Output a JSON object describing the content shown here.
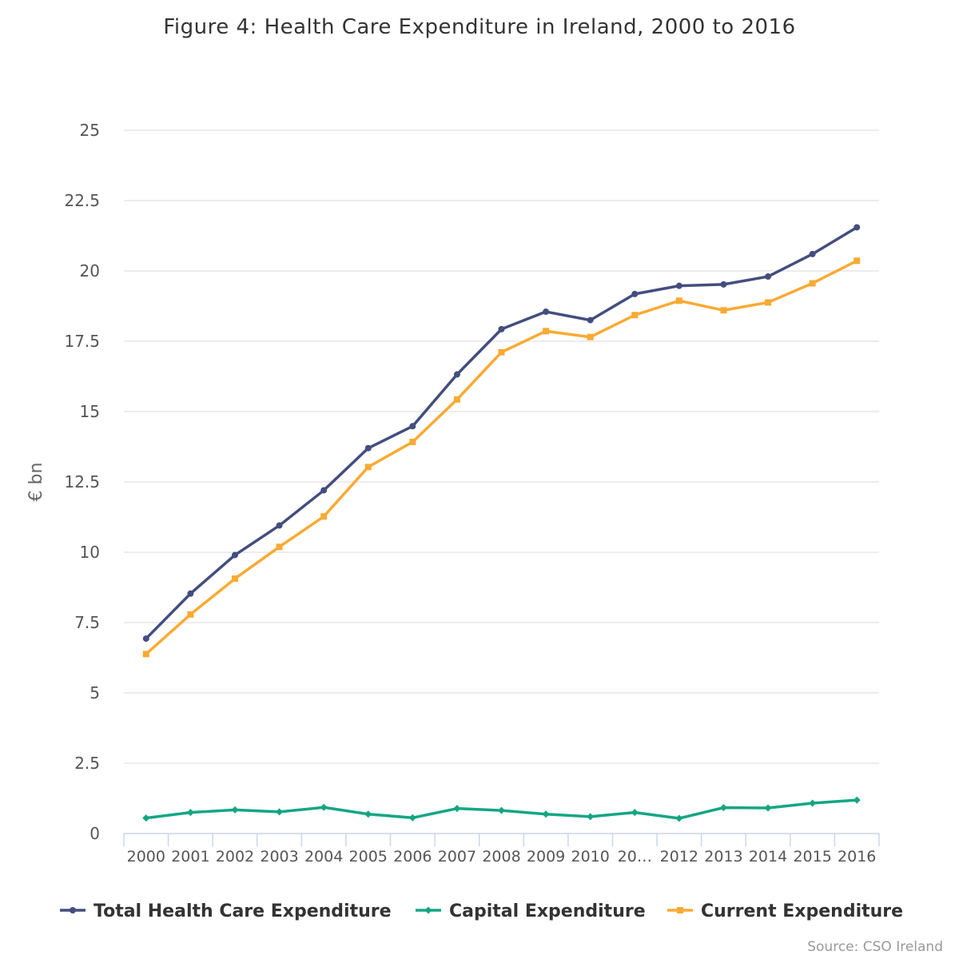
{
  "chart_data": {
    "type": "line",
    "title": "Figure 4: Health Care Expenditure in Ireland, 2000 to 2016",
    "ylabel": "€ bn",
    "xlabel": "",
    "ylim": [
      0,
      25
    ],
    "yticks": [
      "0",
      "2.5",
      "5",
      "7.5",
      "10",
      "12.5",
      "15",
      "17.5",
      "20",
      "22.5",
      "25"
    ],
    "categories": [
      "2000",
      "2001",
      "2002",
      "2003",
      "2004",
      "2005",
      "2006",
      "2007",
      "2008",
      "2009",
      "2010",
      "20…",
      "2012",
      "2013",
      "2014",
      "2015",
      "2016"
    ],
    "grid": true,
    "legend_position": "bottom",
    "series": [
      {
        "name": "Total Health Care Expenditure",
        "color": "#434e7e",
        "marker": "circle",
        "values": [
          6.93,
          8.53,
          9.9,
          10.95,
          12.2,
          13.7,
          14.48,
          16.32,
          17.93,
          18.55,
          18.25,
          19.18,
          19.47,
          19.52,
          19.8,
          20.6,
          21.55
        ]
      },
      {
        "name": "Capital Expenditure",
        "color": "#13a683",
        "marker": "diamond",
        "values": [
          0.55,
          0.75,
          0.84,
          0.77,
          0.93,
          0.69,
          0.56,
          0.89,
          0.82,
          0.69,
          0.6,
          0.75,
          0.54,
          0.92,
          0.91,
          1.08,
          1.19
        ]
      },
      {
        "name": "Current Expenditure",
        "color": "#f9aa33",
        "marker": "square",
        "values": [
          6.38,
          7.79,
          9.06,
          10.19,
          11.27,
          13.03,
          13.92,
          15.43,
          17.11,
          17.86,
          17.65,
          18.43,
          18.94,
          18.6,
          18.88,
          19.56,
          20.36
        ]
      }
    ],
    "source": "Source: CSO Ireland"
  }
}
